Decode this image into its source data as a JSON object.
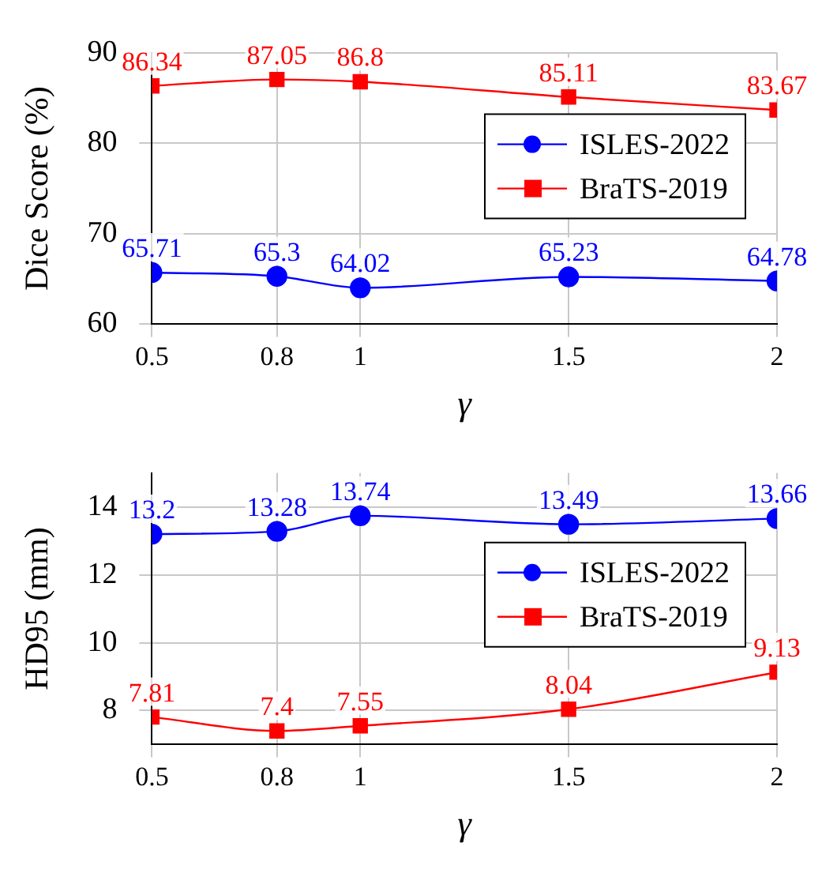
{
  "chart_data": [
    {
      "type": "line",
      "xlabel": "γ",
      "ylabel": "Dice Score (%)",
      "x": [
        0.5,
        0.8,
        1,
        1.5,
        2
      ],
      "xlim": [
        0.5,
        2
      ],
      "xticks": [
        0.5,
        0.8,
        1,
        1.5,
        2
      ],
      "ylim": [
        60,
        90
      ],
      "yticks": [
        60,
        70,
        80,
        90
      ],
      "grid": true,
      "legend": "right",
      "data_labels": true,
      "series": [
        {
          "name": "ISLES-2022",
          "color": "#0000ff",
          "marker": "circle",
          "values": [
            65.71,
            65.3,
            64.02,
            65.23,
            64.78
          ]
        },
        {
          "name": "BraTS-2019",
          "color": "#ff0000",
          "marker": "square",
          "values": [
            86.34,
            87.05,
            86.8,
            85.11,
            83.67
          ]
        }
      ]
    },
    {
      "type": "line",
      "xlabel": "γ",
      "ylabel": "HD95 (mm)",
      "x": [
        0.5,
        0.8,
        1,
        1.5,
        2
      ],
      "xlim": [
        0.5,
        2
      ],
      "xticks": [
        0.5,
        0.8,
        1,
        1.5,
        2
      ],
      "ylim": [
        7,
        15
      ],
      "yticks": [
        8,
        10,
        12,
        14
      ],
      "grid": true,
      "legend": "top right",
      "data_labels": true,
      "series": [
        {
          "name": "ISLES-2022",
          "color": "#0000ff",
          "marker": "circle",
          "values": [
            13.2,
            13.28,
            13.74,
            13.49,
            13.66
          ]
        },
        {
          "name": "BraTS-2019",
          "color": "#ff0000",
          "marker": "square",
          "values": [
            7.81,
            7.4,
            7.55,
            8.04,
            9.13
          ]
        }
      ]
    }
  ]
}
